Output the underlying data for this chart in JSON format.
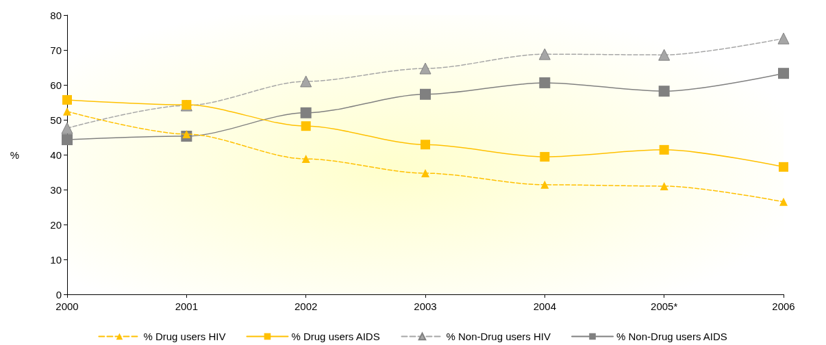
{
  "chart_data": {
    "type": "line",
    "ylabel": "%",
    "categories": [
      "2000",
      "2001",
      "2002",
      "2003",
      "2004",
      "2005*",
      "2006"
    ],
    "ylim": [
      0,
      80
    ],
    "yticks": [
      0,
      10,
      20,
      30,
      40,
      50,
      60,
      70,
      80
    ],
    "grid": false,
    "legend": "bottom",
    "series": [
      {
        "name": "% Drug users HIV",
        "color": "#ffc000",
        "marker": "triangle",
        "line_style": "dashed",
        "values": [
          52.4,
          45.9,
          38.8,
          34.7,
          31.4,
          31.0,
          26.5
        ]
      },
      {
        "name": "% Drug users AIDS",
        "color": "#ffc000",
        "marker": "square",
        "line_style": "solid",
        "values": [
          55.7,
          54.3,
          48.2,
          42.9,
          39.4,
          41.4,
          36.5
        ]
      },
      {
        "name": "% Non-Drug users HIV",
        "color": "#a6a6a6",
        "marker": "triangle",
        "line_style": "dashed",
        "values": [
          47.6,
          54.1,
          61.0,
          64.7,
          68.8,
          68.6,
          73.3
        ]
      },
      {
        "name": "% Non-Drug users AIDS",
        "color": "#808080",
        "marker": "square",
        "line_style": "solid",
        "values": [
          44.3,
          45.3,
          52.0,
          57.3,
          60.6,
          58.2,
          63.3
        ]
      }
    ]
  }
}
